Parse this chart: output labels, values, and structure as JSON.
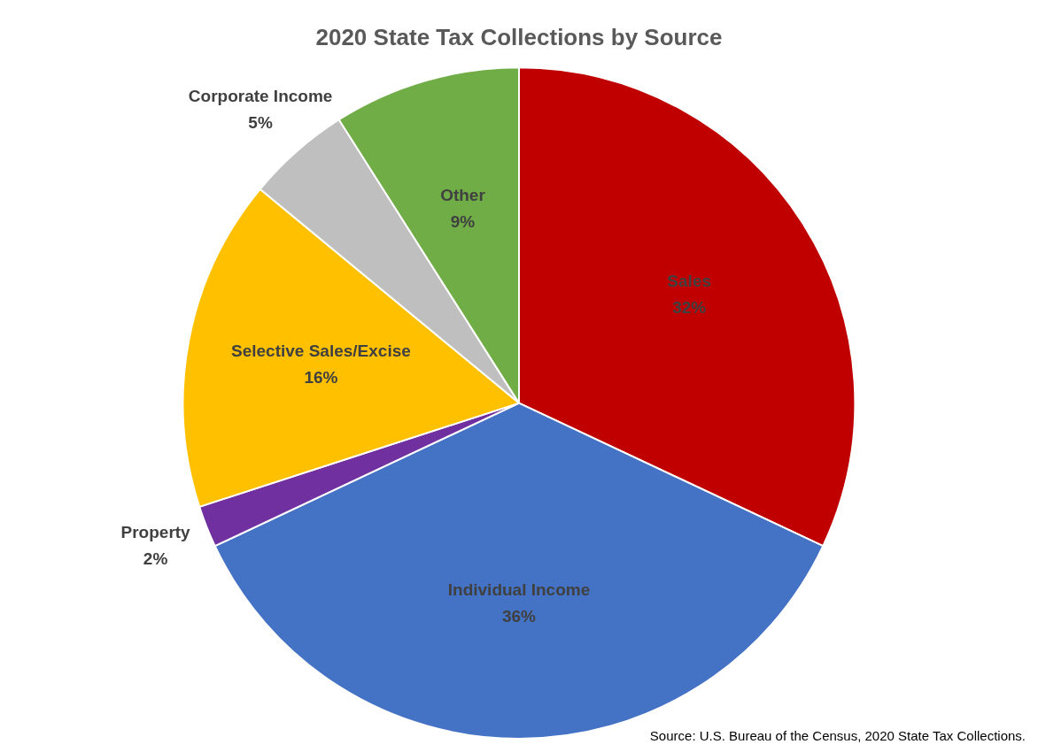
{
  "chart_data": {
    "type": "pie",
    "title": "2020 State Tax Collections by Source",
    "categories": [
      "Sales",
      "Individual Income",
      "Property",
      "Selective Sales/Excise",
      "Corporate Income",
      "Other"
    ],
    "values": [
      32,
      36,
      2,
      16,
      5,
      9
    ],
    "value_labels": [
      "32%",
      "36%",
      "2%",
      "16%",
      "5%",
      "9%"
    ],
    "colors": [
      "#c00000",
      "#4472c4",
      "#7030a0",
      "#ffc000",
      "#bfbfbf",
      "#70ad47"
    ],
    "legend": false,
    "annotations": [
      "Source: U.S. Bureau of the Census, 2020 State Tax Collections."
    ]
  }
}
